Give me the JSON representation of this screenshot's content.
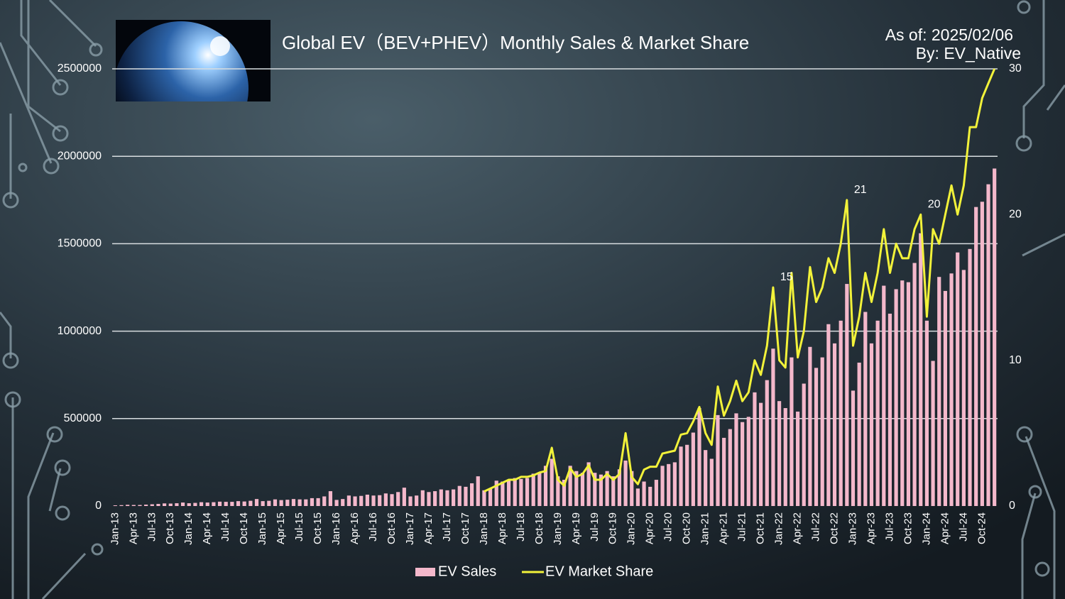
{
  "chart_data": {
    "type": "bar_line",
    "title": "Global EV（BEV+PHEV）Monthly Sales & Market Share",
    "annotations": [
      "As of: 2025/02/06",
      "By: EV_Native"
    ],
    "categories": [
      "Jan-13",
      null,
      null,
      "Apr-13",
      null,
      null,
      "Jul-13",
      null,
      null,
      "Oct-13",
      null,
      null,
      "Jan-14",
      null,
      null,
      "Apr-14",
      null,
      null,
      "Jul-14",
      null,
      null,
      "Oct-14",
      null,
      null,
      "Jan-15",
      null,
      null,
      "Apr-15",
      null,
      null,
      "Jul-15",
      null,
      null,
      "Oct-15",
      null,
      null,
      "Jan-16",
      null,
      null,
      "Apr-16",
      null,
      null,
      "Jul-16",
      null,
      null,
      "Oct-16",
      null,
      null,
      "Jan-17",
      null,
      null,
      "Apr-17",
      null,
      null,
      "Jul-17",
      null,
      null,
      "Oct-17",
      null,
      null,
      "Jan-18",
      null,
      null,
      "Apr-18",
      null,
      null,
      "Jul-18",
      null,
      null,
      "Oct-18",
      null,
      null,
      "Jan-19",
      null,
      null,
      "Apr-19",
      null,
      null,
      "Jul-19",
      null,
      null,
      "Oct-19",
      null,
      null,
      "Jan-20",
      null,
      null,
      "Apr-20",
      null,
      null,
      "Jul-20",
      null,
      null,
      "Oct-20",
      null,
      null,
      "Jan-21",
      null,
      null,
      "Apr-21",
      null,
      null,
      "Jul-21",
      null,
      null,
      "Oct-21",
      null,
      null,
      "Jan-22",
      null,
      null,
      "Apr-22",
      null,
      null,
      "Jul-22",
      null,
      null,
      "Oct-22",
      null,
      null,
      "Jan-23",
      null,
      null,
      "Apr-23",
      null,
      null,
      "Jul-23",
      null,
      null,
      "Oct-23",
      null,
      null,
      "Jan-24",
      null,
      null,
      "Apr-24",
      null,
      null,
      "Jul-24",
      null,
      null,
      "Oct-24",
      null,
      null
    ],
    "series": [
      {
        "name": "EV Sales",
        "color": "#f4b8cb",
        "values": [
          4000,
          5000,
          7000,
          6000,
          6000,
          8000,
          10000,
          12000,
          15000,
          14000,
          16000,
          20000,
          16000,
          18000,
          22000,
          20000,
          22000,
          25000,
          24000,
          24000,
          28000,
          26000,
          30000,
          40000,
          28000,
          30000,
          38000,
          34000,
          36000,
          40000,
          38000,
          38000,
          45000,
          45000,
          55000,
          85000,
          35000,
          40000,
          60000,
          55000,
          58000,
          65000,
          60000,
          62000,
          72000,
          68000,
          80000,
          105000,
          55000,
          60000,
          90000,
          80000,
          85000,
          95000,
          90000,
          95000,
          115000,
          110000,
          130000,
          170000,
          90000,
          100000,
          145000,
          140000,
          150000,
          160000,
          155000,
          160000,
          185000,
          190000,
          230000,
          270000,
          170000,
          150000,
          230000,
          200000,
          190000,
          250000,
          190000,
          180000,
          200000,
          170000,
          210000,
          260000,
          200000,
          100000,
          140000,
          110000,
          150000,
          230000,
          240000,
          250000,
          340000,
          350000,
          420000,
          560000,
          320000,
          270000,
          520000,
          390000,
          440000,
          530000,
          480000,
          510000,
          650000,
          590000,
          720000,
          900000,
          600000,
          560000,
          850000,
          540000,
          700000,
          910000,
          790000,
          850000,
          1040000,
          930000,
          1060000,
          1270000,
          660000,
          820000,
          1110000,
          930000,
          1060000,
          1260000,
          1100000,
          1240000,
          1290000,
          1280000,
          1390000,
          1560000,
          1060000,
          830000,
          1310000,
          1230000,
          1330000,
          1450000,
          1350000,
          1470000,
          1710000,
          1740000,
          1840000,
          1930000
        ]
      },
      {
        "name": "EV Market Share",
        "color": "#f2f23a",
        "axis": "y2",
        "values": [
          null,
          null,
          null,
          null,
          null,
          null,
          null,
          null,
          null,
          null,
          null,
          null,
          null,
          null,
          null,
          null,
          null,
          null,
          null,
          null,
          null,
          null,
          null,
          null,
          null,
          null,
          null,
          null,
          null,
          null,
          null,
          null,
          null,
          null,
          null,
          null,
          null,
          null,
          null,
          null,
          null,
          null,
          null,
          null,
          null,
          null,
          null,
          null,
          null,
          null,
          null,
          null,
          null,
          null,
          null,
          null,
          null,
          null,
          null,
          null,
          1,
          1.2,
          1.4,
          1.6,
          1.8,
          1.8,
          2,
          2,
          2.1,
          2.3,
          2.4,
          4,
          1.8,
          1.4,
          2.6,
          2,
          2.2,
          2.8,
          1.8,
          1.8,
          2.2,
          1.8,
          2.2,
          5,
          2,
          1.5,
          2.5,
          2.7,
          2.7,
          3.6,
          3.7,
          3.8,
          4.9,
          5,
          5.8,
          6.8,
          5,
          4.2,
          8.2,
          6.2,
          7.2,
          8.6,
          7.2,
          7.8,
          10,
          9,
          11,
          15,
          10,
          9.5,
          16,
          10.2,
          12,
          16.4,
          14,
          15,
          17,
          16,
          18,
          21,
          11,
          13,
          16,
          14,
          16,
          19,
          16,
          18,
          17,
          17,
          19,
          20,
          13,
          19,
          18,
          20,
          22,
          20,
          22,
          26,
          26,
          28,
          29,
          30
        ],
        "value_labels": [
          null,
          null,
          null,
          null,
          null,
          null,
          null,
          null,
          null,
          null,
          null,
          null,
          null,
          null,
          null,
          null,
          null,
          null,
          null,
          null,
          null,
          null,
          null,
          null,
          null,
          null,
          null,
          null,
          null,
          null,
          null,
          null,
          null,
          null,
          null,
          null,
          null,
          null,
          null,
          null,
          null,
          null,
          null,
          null,
          null,
          null,
          null,
          null,
          null,
          null,
          null,
          null,
          null,
          null,
          null,
          null,
          null,
          null,
          null,
          null,
          null,
          null,
          null,
          null,
          null,
          null,
          null,
          null,
          null,
          null,
          null,
          null,
          null,
          null,
          null,
          null,
          null,
          null,
          null,
          null,
          null,
          null,
          null,
          null,
          null,
          null,
          null,
          null,
          null,
          null,
          null,
          null,
          null,
          null,
          null,
          null,
          null,
          null,
          null,
          null,
          null,
          null,
          null,
          null,
          null,
          null,
          null,
          "15",
          null,
          null,
          null,
          null,
          null,
          null,
          null,
          null,
          null,
          null,
          null,
          "21",
          null,
          null,
          null,
          null,
          null,
          null,
          null,
          null,
          null,
          null,
          null,
          "20",
          null,
          null,
          null,
          null,
          null,
          null,
          null,
          null,
          null,
          null,
          null,
          null
        ]
      }
    ],
    "ylim": [
      0,
      2500000
    ],
    "yticks": [
      0,
      500000,
      1000000,
      1500000,
      2000000,
      2500000
    ],
    "y2lim": [
      0,
      30
    ],
    "y2ticks": [
      0,
      10,
      20,
      30
    ],
    "grid": true,
    "legend": "bottom"
  }
}
